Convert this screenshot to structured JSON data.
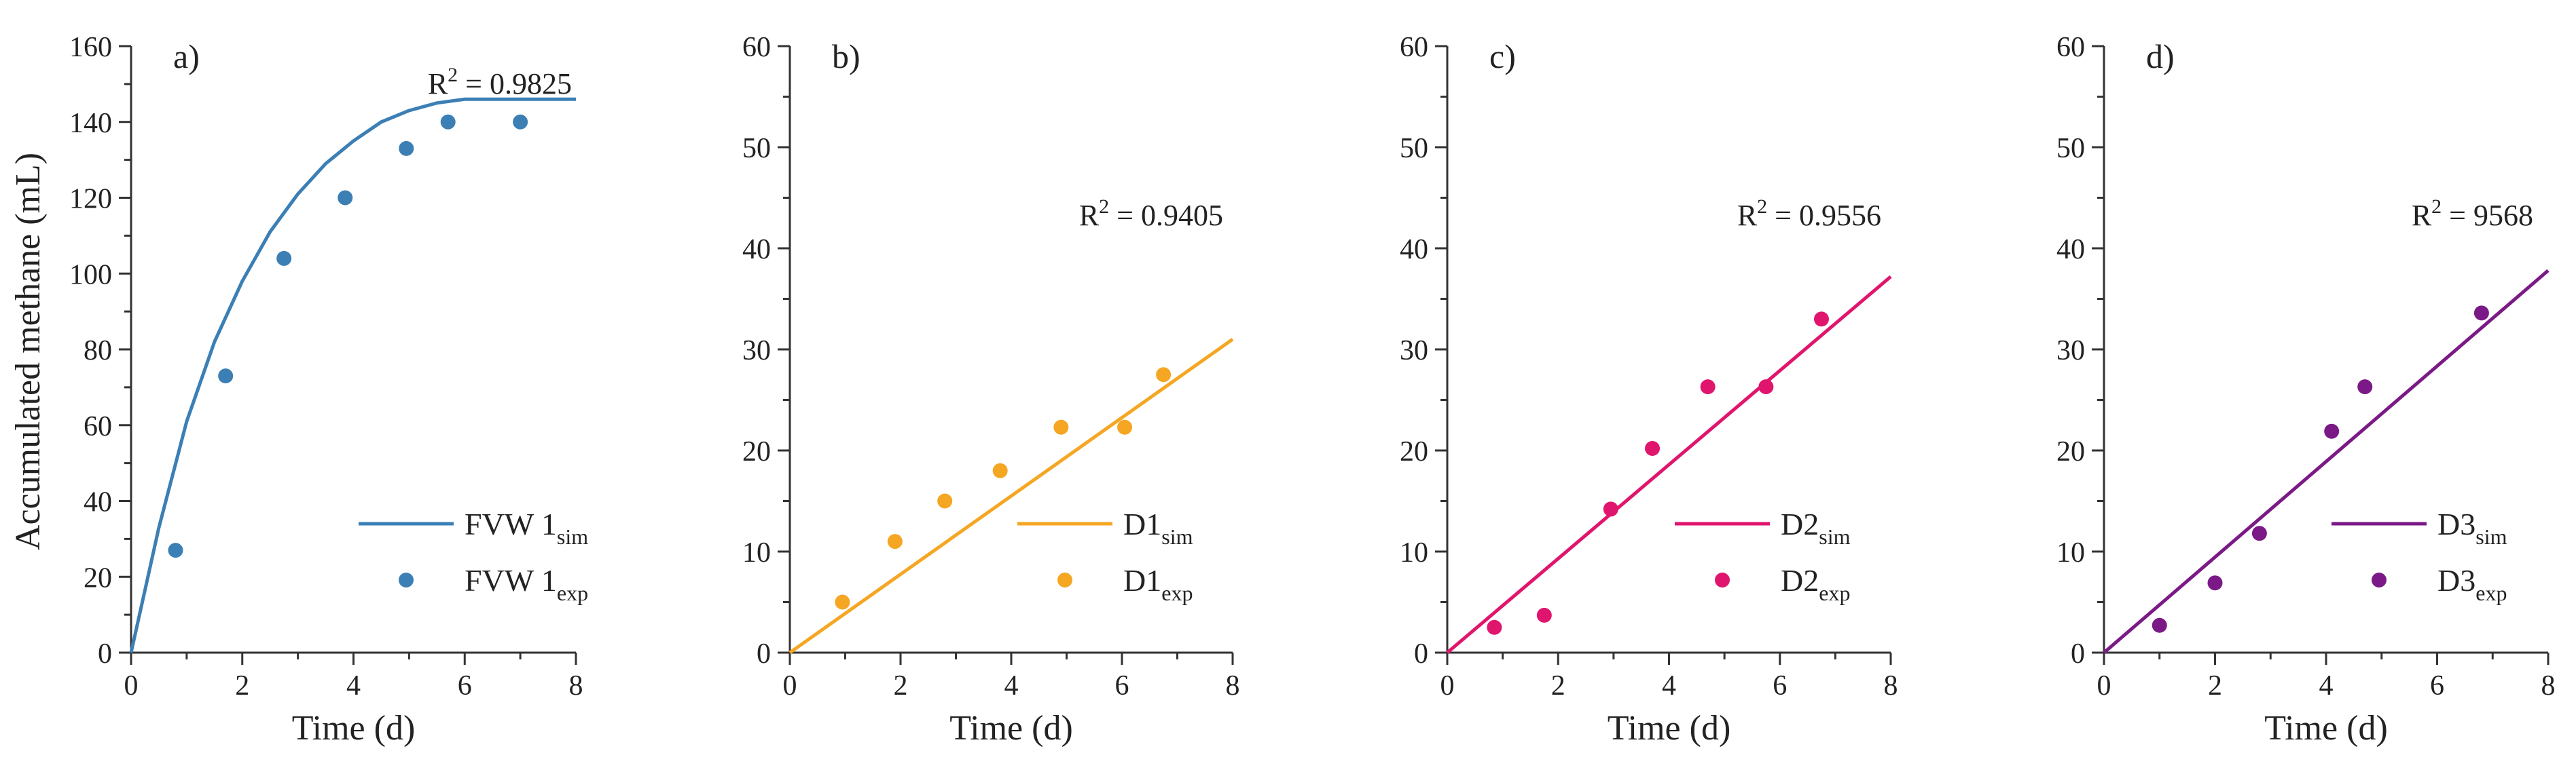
{
  "figure": {
    "ylabel": "Accumulated methane (mL)"
  },
  "chart_data": [
    {
      "panel": "a)",
      "type": "line+scatter",
      "xlabel": "Time (d)",
      "ylabel": "Accumulated methane (mL)",
      "xlim": [
        0,
        8
      ],
      "ylim": [
        0,
        160
      ],
      "xticks": [
        0,
        2,
        4,
        6,
        8
      ],
      "yticks": [
        0,
        20,
        40,
        60,
        80,
        100,
        120,
        140,
        160
      ],
      "r2": {
        "label": "R",
        "sup": "2",
        "text": " = 0.9825"
      },
      "color": "#3b7fb5",
      "legend": {
        "sim": {
          "base": "FVW 1",
          "sub": "sim"
        },
        "exp": {
          "base": "FVW 1",
          "sub": "exp"
        }
      },
      "sim_curve": {
        "x": [
          0,
          0.5,
          1,
          1.5,
          2,
          2.5,
          3,
          3.5,
          4,
          4.5,
          5,
          5.5,
          6,
          6.5,
          7,
          7.5,
          8
        ],
        "y": [
          0,
          33,
          61,
          82,
          98,
          111,
          121,
          129,
          135,
          140,
          143,
          145,
          146,
          146,
          146,
          146,
          146
        ]
      },
      "exp_points": {
        "x": [
          0.8,
          1.7,
          2.75,
          3.85,
          4.95,
          5.7,
          7.0
        ],
        "y": [
          27,
          73,
          104,
          120,
          133,
          140,
          140
        ]
      }
    },
    {
      "panel": "b)",
      "type": "line+scatter",
      "xlabel": "Time (d)",
      "xlim": [
        0,
        8
      ],
      "ylim": [
        0,
        60
      ],
      "xticks": [
        0,
        2,
        4,
        6,
        8
      ],
      "yticks": [
        0,
        10,
        20,
        30,
        40,
        50,
        60
      ],
      "r2": {
        "label": "R",
        "sup": "2",
        "text": " = 0.9405"
      },
      "color": "#f5a623",
      "legend": {
        "sim": {
          "base": "D1",
          "sub": "sim"
        },
        "exp": {
          "base": "D1",
          "sub": "exp"
        }
      },
      "sim_curve": {
        "x": [
          0,
          8
        ],
        "y": [
          0,
          31
        ]
      },
      "exp_points": {
        "x": [
          0.95,
          1.9,
          2.8,
          3.8,
          4.9,
          6.05,
          6.75
        ],
        "y": [
          5,
          11,
          15,
          18,
          22.3,
          22.3,
          27.5
        ]
      }
    },
    {
      "panel": "c)",
      "type": "line+scatter",
      "xlabel": "Time (d)",
      "xlim": [
        0,
        8
      ],
      "ylim": [
        0,
        60
      ],
      "xticks": [
        0,
        2,
        4,
        6,
        8
      ],
      "yticks": [
        0,
        10,
        20,
        30,
        40,
        50,
        60
      ],
      "r2": {
        "label": "R",
        "sup": "2",
        "text": " = 0.9556"
      },
      "color": "#e0156e",
      "legend": {
        "sim": {
          "base": "D2",
          "sub": "sim"
        },
        "exp": {
          "base": "D2",
          "sub": "exp"
        }
      },
      "sim_curve": {
        "x": [
          0,
          8
        ],
        "y": [
          0,
          37.2
        ]
      },
      "exp_points": {
        "x": [
          0.85,
          1.75,
          2.95,
          3.7,
          4.7,
          5.75,
          6.75
        ],
        "y": [
          2.5,
          3.7,
          14.2,
          20.2,
          26.3,
          26.3,
          33
        ]
      }
    },
    {
      "panel": "d)",
      "type": "line+scatter",
      "xlabel": "Time (d)",
      "xlim": [
        0,
        8
      ],
      "ylim": [
        0,
        60
      ],
      "xticks": [
        0,
        2,
        4,
        6,
        8
      ],
      "yticks": [
        0,
        10,
        20,
        30,
        40,
        50,
        60
      ],
      "r2": {
        "label": "R",
        "sup": "2",
        "text": " = 9568"
      },
      "color": "#7b1a86",
      "legend": {
        "sim": {
          "base": "D3",
          "sub": "sim"
        },
        "exp": {
          "base": "D3",
          "sub": "exp"
        }
      },
      "sim_curve": {
        "x": [
          0,
          8
        ],
        "y": [
          0,
          37.8
        ]
      },
      "exp_points": {
        "x": [
          1.0,
          2.0,
          2.8,
          4.1,
          4.7,
          6.8
        ],
        "y": [
          2.7,
          6.9,
          11.8,
          21.9,
          26.3,
          33.6
        ]
      }
    }
  ]
}
